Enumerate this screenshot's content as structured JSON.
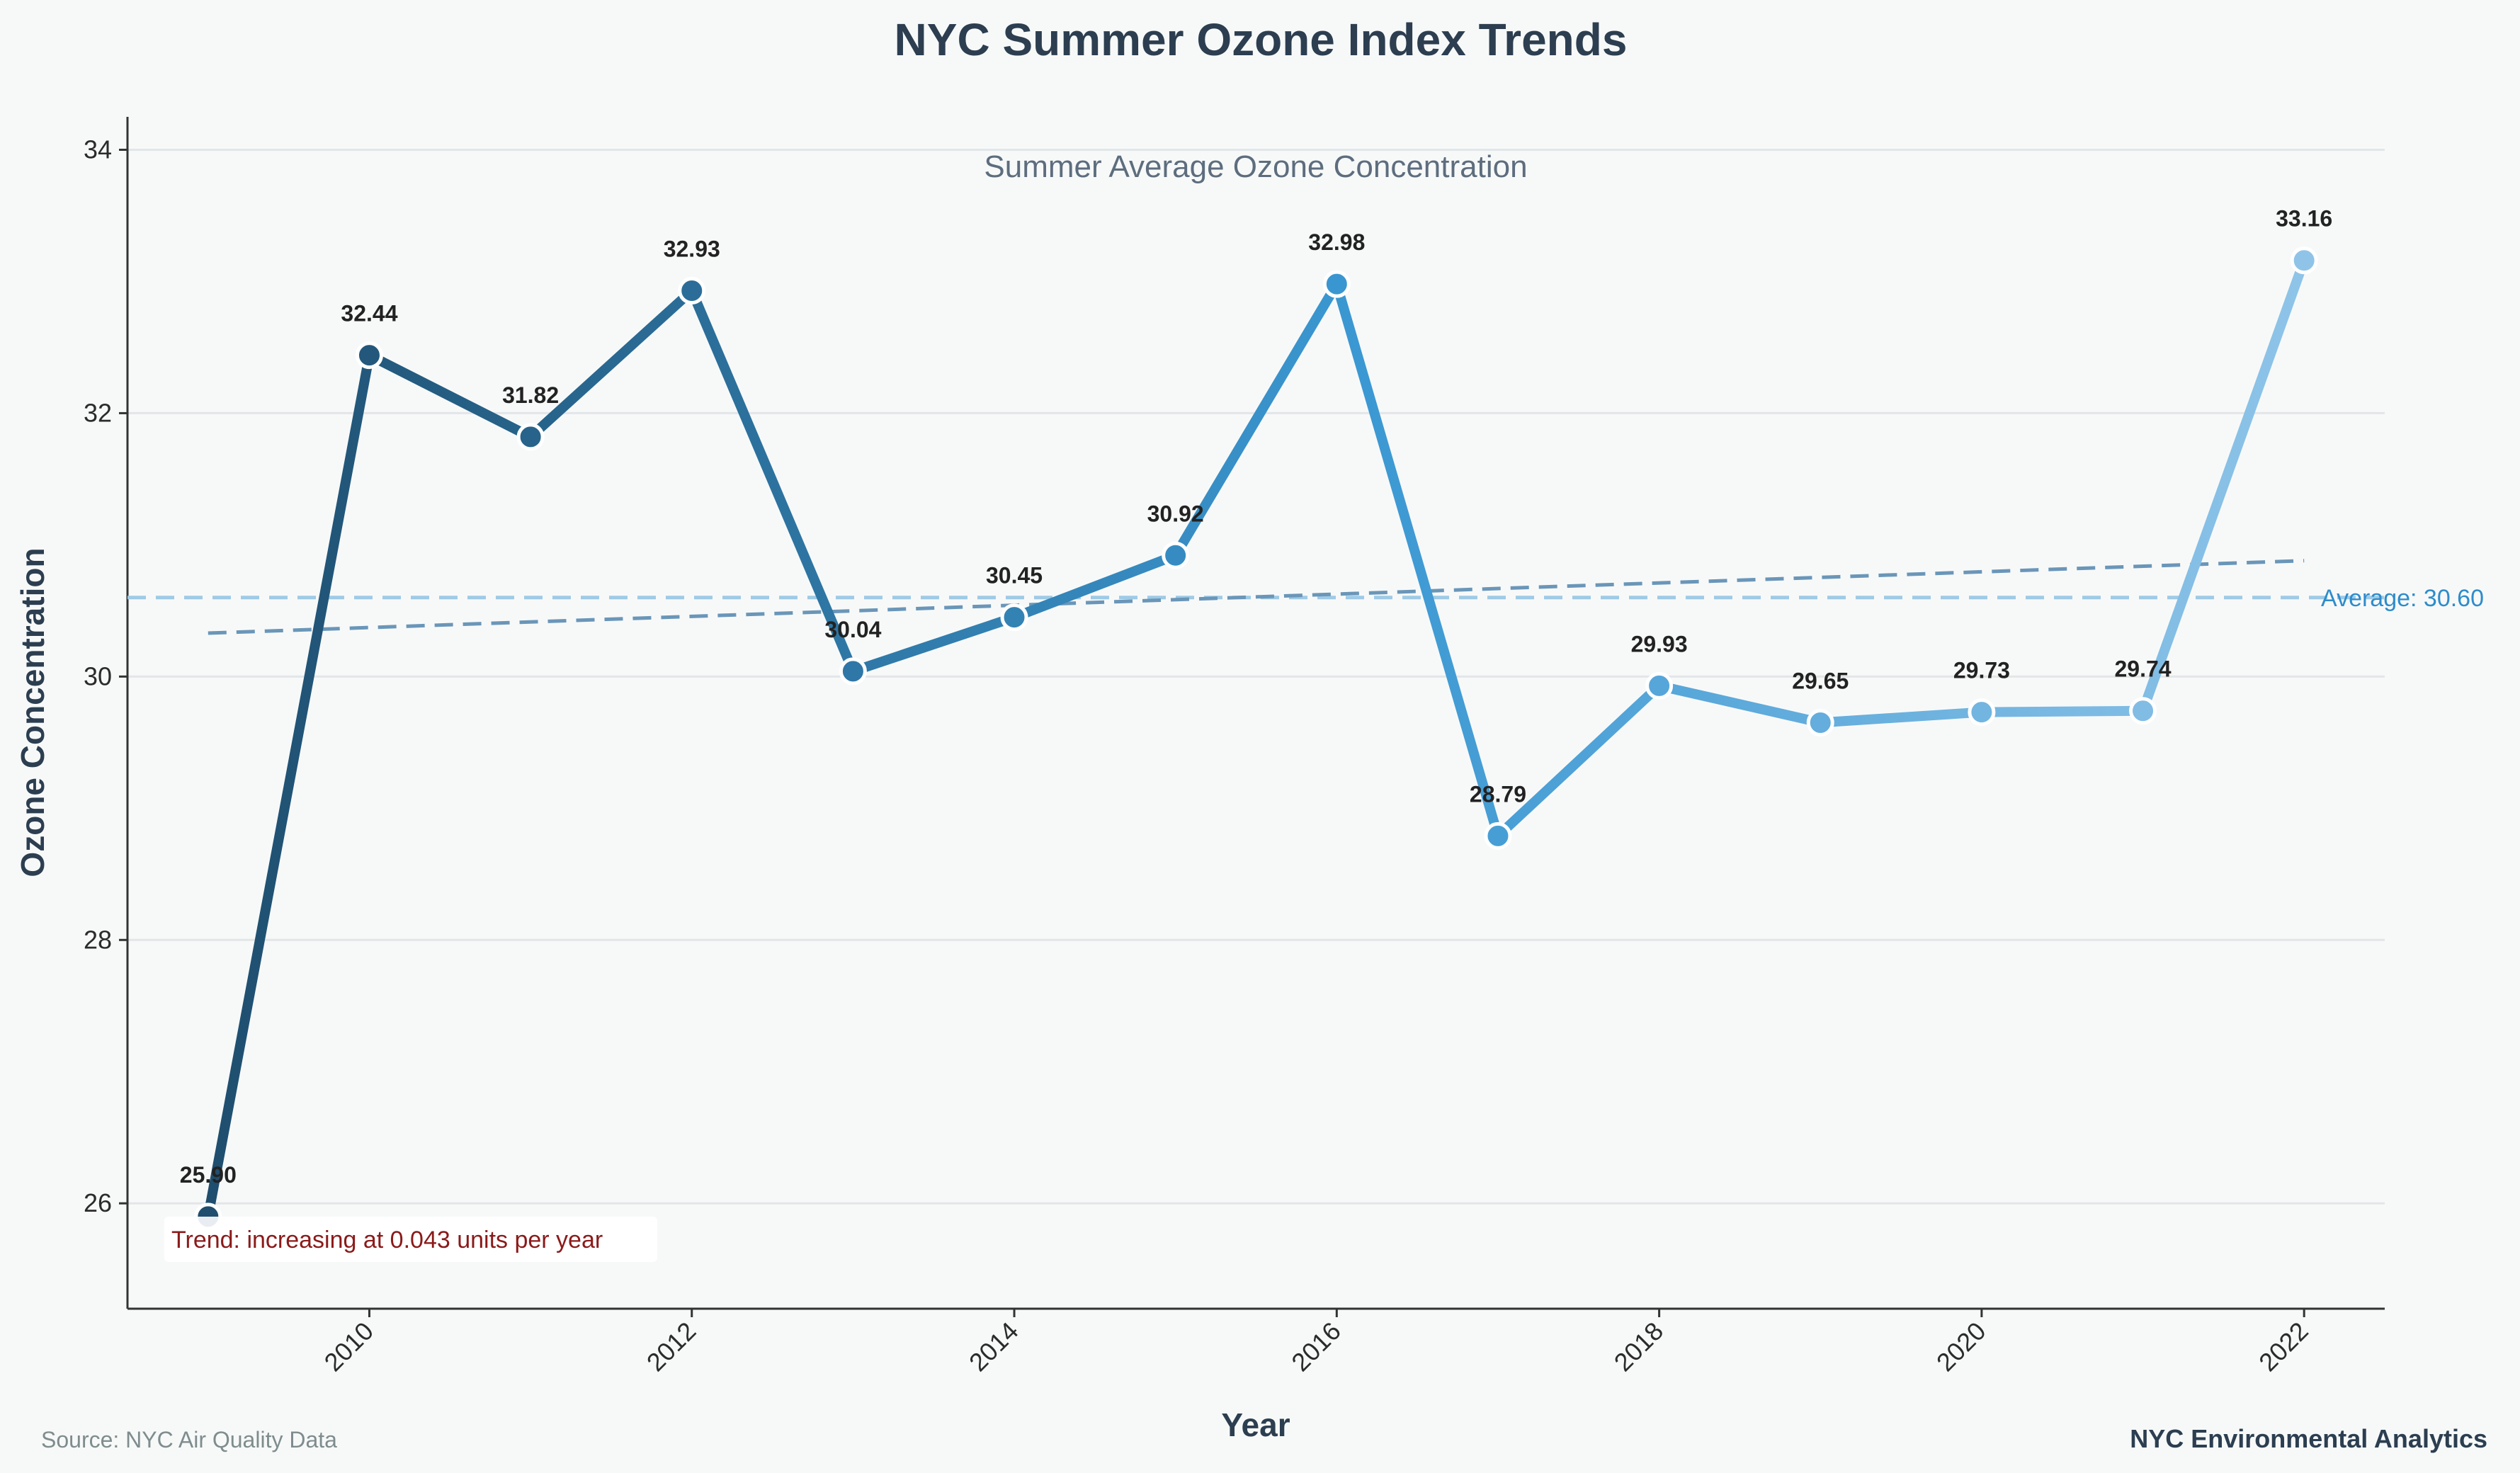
{
  "chart_data": {
    "type": "line",
    "title": "NYC Summer Ozone Index Trends",
    "subtitle": "Summer Average Ozone Concentration",
    "xlabel": "Year",
    "ylabel": "Ozone Concentration",
    "x": [
      2009,
      2010,
      2011,
      2012,
      2013,
      2014,
      2015,
      2016,
      2017,
      2018,
      2019,
      2020,
      2021,
      2022
    ],
    "values": [
      25.9,
      32.44,
      31.82,
      32.93,
      30.04,
      30.45,
      30.92,
      32.98,
      28.79,
      29.93,
      29.65,
      29.73,
      29.74,
      33.16
    ],
    "labels": [
      "25.90",
      "32.44",
      "31.82",
      "32.93",
      "30.04",
      "30.45",
      "30.92",
      "32.98",
      "28.79",
      "29.93",
      "29.65",
      "29.73",
      "29.74",
      "33.16"
    ],
    "xticks": [
      2010,
      2012,
      2014,
      2016,
      2018,
      2020,
      2022
    ],
    "yticks": [
      26,
      28,
      30,
      32,
      34
    ],
    "xlim": [
      2008.5,
      2022.5
    ],
    "ylim": [
      25.2,
      34.25
    ],
    "grid": "horizontal",
    "average": {
      "value": 30.6,
      "label": "Average: 30.60"
    },
    "trendline": {
      "start": 30.33,
      "end": 30.88,
      "annotation": "Trend: increasing at 0.043 units per year"
    },
    "colors": {
      "gradient_start": "#1f4e6e",
      "gradient_mid": "#3b98d2",
      "gradient_end": "#8fc4e8",
      "average": "#9ecae6",
      "average_label": "#2e8ccb",
      "trendline": "#6a96b8",
      "annotation": "#8b1a1a",
      "title": "#2c3e50",
      "subtitle": "#5d6d7e"
    }
  },
  "footer": {
    "source": "Source: NYC Air Quality Data",
    "credit": "NYC Environmental Analytics"
  }
}
